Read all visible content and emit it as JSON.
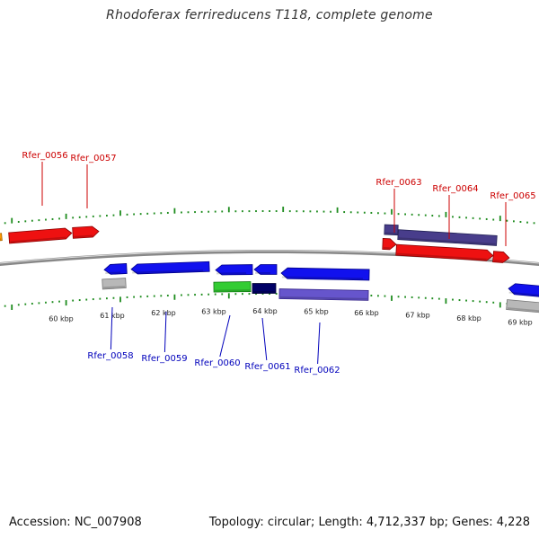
{
  "title": "Rhodoferax ferrireducens T118, complete genome",
  "footer": {
    "accession_text": "Accession: NC_007908",
    "stats_text": "Topology: circular; Length: 4,712,337 bp; Genes: 4,228"
  },
  "colors": {
    "backbone": "#888888",
    "tick": "#1e8c1e",
    "forward_label": "#cc0000",
    "reverse_label": "#0000bb"
  },
  "scale": {
    "unit": "kbp",
    "labels": [
      "60 kbp",
      "61 kbp",
      "62 kbp",
      "63 kbp",
      "64 kbp",
      "65 kbp",
      "66 kbp",
      "67 kbp",
      "68 kbp",
      "69 kbp"
    ]
  },
  "gene_labels": {
    "forward": [
      "Rfer_0056",
      "Rfer_0057",
      "Rfer_0063",
      "Rfer_0064",
      "Rfer_0065"
    ],
    "reverse": [
      "Rfer_0058",
      "Rfer_0059",
      "Rfer_0060",
      "Rfer_0061",
      "Rfer_0062"
    ]
  },
  "feature_colors": {
    "red": "#ee1111",
    "blue": "#1111ee",
    "green": "#33cc33",
    "navy": "#000066",
    "slate": "#6655cc",
    "dark_slate": "#483d8b",
    "grey": "#b8b8b8",
    "orange": "#ff9900"
  }
}
